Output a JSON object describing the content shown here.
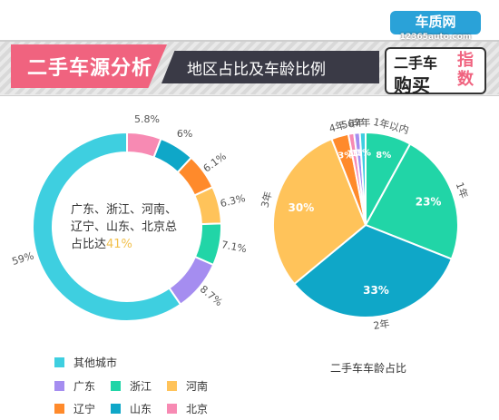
{
  "header": {
    "title": "二手车源分析",
    "subtitle": "地区占比及车龄比例"
  },
  "logo": {
    "brand": "车质网",
    "url": "12365auto.com",
    "line1": "二手车",
    "line2": "购买",
    "line3": "指数"
  },
  "colors": {
    "pink": "#f0637f",
    "dark": "#3a3a46",
    "cyan": "#3ecfe0",
    "purple": "#a58df0",
    "green": "#21d5a7",
    "orange_light": "#ffc35a",
    "orange": "#ff8a2b",
    "blue": "#0fa7c8",
    "rose": "#f78ab3"
  },
  "center_text": {
    "text": "广东、浙江、河南、辽宁、山东、北京总占比达",
    "percent": "41%"
  },
  "right_caption": "二手车车龄占比",
  "chart_data": [
    {
      "type": "pie",
      "subtype": "donut",
      "title": "",
      "slices": [
        {
          "name": "其他城市",
          "value": 59,
          "label": "59%",
          "color": "#3ecfe0"
        },
        {
          "name": "广东",
          "value": 8.7,
          "label": "8.7%",
          "color": "#a58df0"
        },
        {
          "name": "浙江",
          "value": 7.1,
          "label": "7.1%",
          "color": "#21d5a7"
        },
        {
          "name": "河南",
          "value": 6.3,
          "label": "6.3%",
          "color": "#ffc35a"
        },
        {
          "name": "辽宁",
          "value": 6.1,
          "label": "6.1%",
          "color": "#ff8a2b"
        },
        {
          "name": "山东",
          "value": 6,
          "label": "6%",
          "color": "#0fa7c8"
        },
        {
          "name": "北京",
          "value": 5.8,
          "label": "5.8%",
          "color": "#f78ab3"
        }
      ],
      "legend": [
        {
          "name": "其他城市",
          "color": "#3ecfe0"
        },
        {
          "name": "广东",
          "color": "#a58df0"
        },
        {
          "name": "浙江",
          "color": "#21d5a7"
        },
        {
          "name": "河南",
          "color": "#ffc35a"
        },
        {
          "name": "辽宁",
          "color": "#ff8a2b"
        },
        {
          "name": "山东",
          "color": "#0fa7c8"
        },
        {
          "name": "北京",
          "color": "#f78ab3"
        }
      ],
      "legend_placement": "bottom-left"
    },
    {
      "type": "pie",
      "title": "二手车车龄占比",
      "slices": [
        {
          "name": "1年以内",
          "value": 8,
          "label": "8%",
          "color": "#21d5a7"
        },
        {
          "name": "1年",
          "value": 23,
          "label": "23%",
          "color": "#21d5a7"
        },
        {
          "name": "2年",
          "value": 33,
          "label": "33%",
          "color": "#0fa7c8"
        },
        {
          "name": "3年",
          "value": 30,
          "label": "30%",
          "color": "#ffc35a"
        },
        {
          "name": "4年",
          "value": 3,
          "label": "3%",
          "color": "#ff8a2b"
        },
        {
          "name": "5年",
          "value": 1,
          "label": "1%",
          "color": "#f78ab3"
        },
        {
          "name": "6年",
          "value": 1,
          "label": "1%",
          "color": "#a58df0"
        },
        {
          "name": "7年",
          "value": 1,
          "label": "1%",
          "color": "#3ecfe0"
        }
      ]
    }
  ]
}
